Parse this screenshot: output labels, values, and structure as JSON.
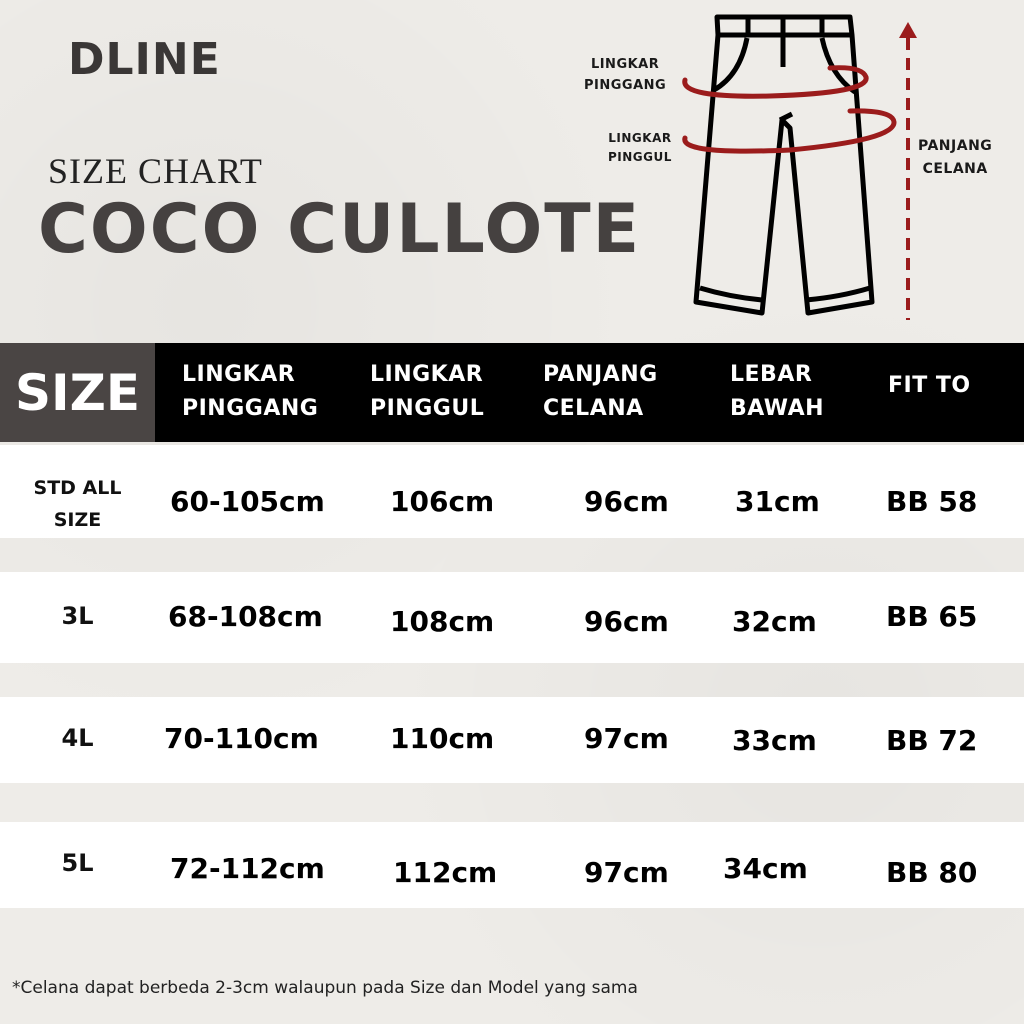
{
  "brand": "DLINE",
  "subtitle": "SIZE CHART",
  "title": "COCO CULLOTE",
  "diagram": {
    "waist_label": [
      "LINGKAR",
      "PINGGANG"
    ],
    "hip_label": [
      "LINGKAR",
      "PINGGUL"
    ],
    "length_label": [
      "PANJANG",
      "CELANA"
    ],
    "accent_color": "#9b1c1c"
  },
  "table": {
    "size_header": "SIZE",
    "headers": [
      [
        "LINGKAR",
        "PINGGANG"
      ],
      [
        "LINGKAR",
        "PINGGUL"
      ],
      [
        "PANJANG",
        "CELANA"
      ],
      [
        "LEBAR",
        "BAWAH"
      ],
      [
        "FIT TO",
        ""
      ]
    ],
    "rows": [
      {
        "size": [
          "STD ALL",
          "SIZE"
        ],
        "cells": [
          "60-105cm",
          "106cm",
          "96cm",
          "31cm",
          "BB 58"
        ]
      },
      {
        "size": [
          "3L",
          ""
        ],
        "cells": [
          "68-108cm",
          "108cm",
          "96cm",
          "32cm",
          "BB 65"
        ]
      },
      {
        "size": [
          "4L",
          ""
        ],
        "cells": [
          "70-110cm",
          "110cm",
          "97cm",
          "33cm",
          "BB 72"
        ]
      },
      {
        "size": [
          "5L",
          ""
        ],
        "cells": [
          "72-112cm",
          "112cm",
          "97cm",
          "34cm",
          "BB 80"
        ]
      }
    ]
  },
  "note": "*Celana dapat berbeda 2-3cm walaupun pada Size dan Model yang sama"
}
